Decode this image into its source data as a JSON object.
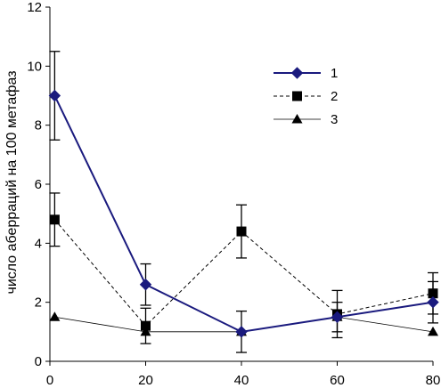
{
  "chart_data": {
    "type": "line",
    "title": "",
    "xlabel": "",
    "ylabel": "число аберраций на 100 метафаз",
    "xlim": [
      0,
      80
    ],
    "ylim": [
      0,
      12
    ],
    "x_ticks": [
      "0",
      "20",
      "40",
      "60",
      "80"
    ],
    "y_ticks": [
      "0",
      "2",
      "4",
      "6",
      "8",
      "10",
      "12"
    ],
    "grid": false,
    "legend": "right",
    "series": [
      {
        "name": "1",
        "marker": "diamond",
        "line_style": "solid",
        "color": "#1a1a7e",
        "x": [
          1,
          20,
          40,
          60,
          80
        ],
        "y": [
          9.0,
          2.6,
          1.0,
          1.5,
          2.0
        ],
        "err": [
          1.5,
          0.7,
          0.7,
          0.5,
          0.7
        ]
      },
      {
        "name": "2",
        "marker": "square",
        "line_style": "dashed",
        "color": "#000000",
        "x": [
          1,
          20,
          40,
          60,
          80
        ],
        "y": [
          4.8,
          1.2,
          4.4,
          1.6,
          2.3
        ],
        "err": [
          0.9,
          0.6,
          0.9,
          0.8,
          0.7
        ]
      },
      {
        "name": "3",
        "marker": "triangle",
        "line_style": "thin",
        "color": "#000000",
        "x": [
          1,
          20,
          40,
          60,
          80
        ],
        "y": [
          1.5,
          1.0,
          1.0,
          1.5,
          1.0
        ],
        "err": [
          0,
          0,
          0,
          0,
          0
        ]
      }
    ]
  }
}
